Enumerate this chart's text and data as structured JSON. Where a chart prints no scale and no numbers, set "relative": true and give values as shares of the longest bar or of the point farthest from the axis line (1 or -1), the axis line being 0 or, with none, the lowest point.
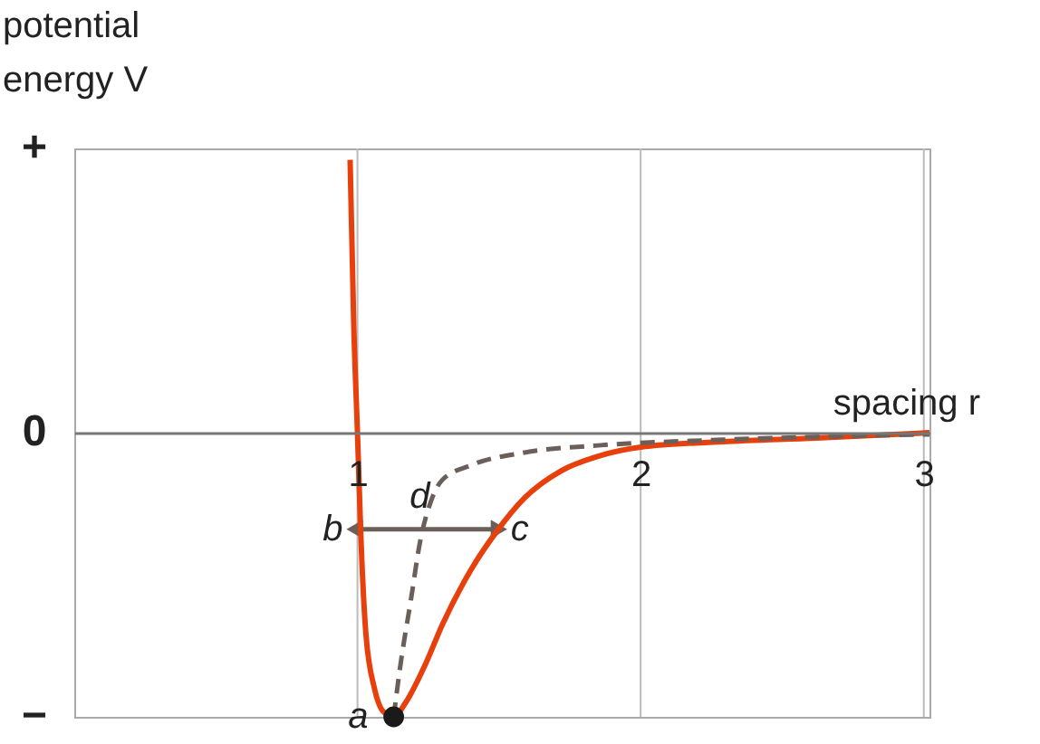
{
  "chart_data": {
    "type": "line",
    "xlabel": "spacing r",
    "ylabel": "potential energy V",
    "xlim": [
      0,
      3.02
    ],
    "xticks": [
      1,
      2,
      3
    ],
    "relative": true,
    "grid": "x",
    "series": [
      {
        "color": "#e8400c",
        "line_style": "solid",
        "marker": "none",
        "x": [
          0.974,
          0.987,
          1.0,
          1.013,
          1.03,
          1.06,
          1.09,
          1.128,
          1.17,
          1.24,
          1.3,
          1.4,
          1.49,
          1.59,
          1.72,
          1.85,
          2.0,
          2.29,
          2.62,
          3.02
        ],
        "values": [
          0.96,
          0.376,
          0,
          -0.39,
          -0.71,
          -0.9,
          -0.98,
          -1,
          -0.95,
          -0.815,
          -0.675,
          -0.484,
          -0.35,
          -0.23,
          -0.134,
          -0.083,
          -0.051,
          -0.032,
          -0.019,
          0
        ]
      },
      {
        "color": "#6b5f5a",
        "line_style": "dashed",
        "marker": "none",
        "x": [
          1.128,
          1.15,
          1.19,
          1.22,
          1.26,
          1.3,
          1.4,
          1.59,
          1.85,
          2.29,
          3.02
        ],
        "values": [
          -1,
          -0.83,
          -0.58,
          -0.39,
          -0.24,
          -0.166,
          -0.115,
          -0.07,
          -0.045,
          -0.025,
          -0.006
        ]
      },
      {
        "type": "scatter",
        "color": "#1a1a1a",
        "marker": "circle",
        "x": [
          1.128
        ],
        "values": [
          -1
        ]
      }
    ],
    "annotations": [
      {
        "text": "a",
        "x": 1.128,
        "y": -1
      },
      {
        "text": "b",
        "x": 1.0,
        "y": -0.34
      },
      {
        "text": "c",
        "x": 1.49,
        "y": -0.34
      },
      {
        "text": "d",
        "x": 1.22,
        "y": -0.34
      },
      "+",
      "0",
      "−"
    ]
  }
}
